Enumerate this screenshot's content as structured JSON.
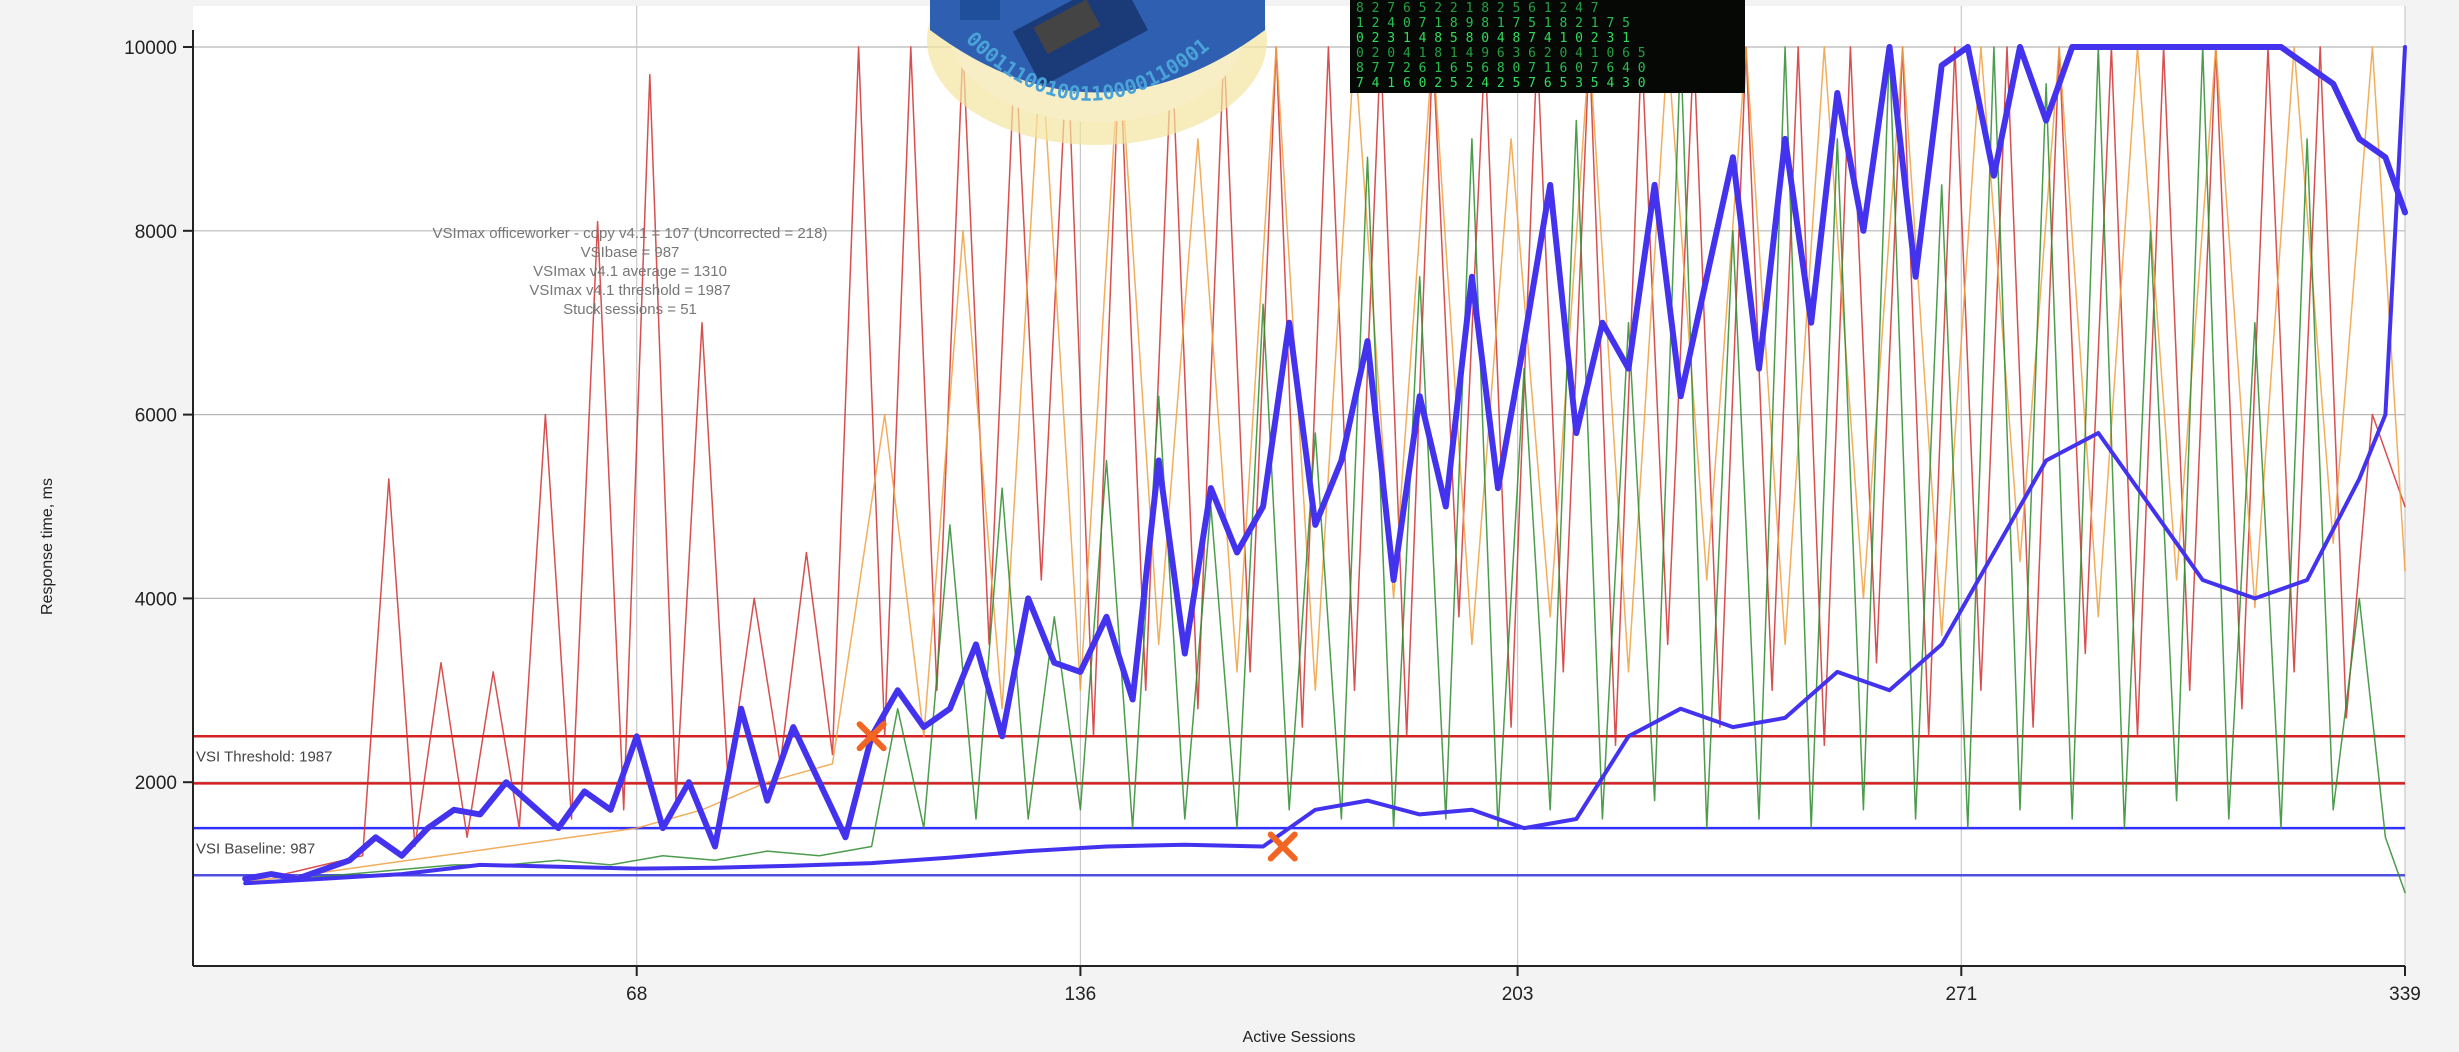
{
  "chart_data": {
    "type": "line",
    "title": "",
    "xlabel": "Active Sessions",
    "ylabel": "Response time, ms",
    "xlim": [
      0,
      339
    ],
    "ylim": [
      0,
      10000
    ],
    "x_ticks": [
      68,
      136,
      203,
      271,
      339
    ],
    "y_ticks": [
      2000,
      4000,
      6000,
      8000,
      10000
    ],
    "grid": true,
    "annotation_lines": [
      "VSImax officeworker - copy v4.1 = 107 (Uncorrected = 218)",
      "VSIbase = 987",
      "VSImax v4.1 average = 1310",
      "VSImax v4.1 threshold = 1987",
      "Stuck sessions = 51"
    ],
    "reference_lines": [
      {
        "name": "VSI Threshold: 1987",
        "y": 1987,
        "color": "#d42020",
        "labeled": true
      },
      {
        "name": "VSI Baseline: 987",
        "y": 987,
        "color": "#5050e0",
        "labeled": true
      },
      {
        "name": "",
        "y": 2500,
        "color": "#d42020",
        "labeled": false
      },
      {
        "name": "",
        "y": 1500,
        "color": "#3030ff",
        "labeled": false
      }
    ],
    "markers": [
      {
        "x": 104,
        "y": 2500,
        "symbol": "x",
        "color": "#f26522"
      },
      {
        "x": 167,
        "y": 1300,
        "symbol": "x",
        "color": "#f26522"
      }
    ],
    "series": [
      {
        "color": "#4433ee",
        "width": 6,
        "x": [
          8,
          12,
          16,
          20,
          24,
          28,
          32,
          36,
          40,
          44,
          48,
          52,
          56,
          60,
          64,
          68,
          72,
          76,
          80,
          84,
          88,
          92,
          96,
          100,
          104,
          108,
          112,
          116,
          120,
          124,
          128,
          132,
          136,
          140,
          144,
          148,
          152,
          156,
          160,
          164,
          168,
          172,
          176,
          180,
          184,
          188,
          192,
          196,
          200,
          204,
          208,
          212,
          216,
          220,
          224,
          228,
          232,
          236,
          240,
          244,
          248,
          252,
          256,
          260,
          264,
          268,
          272,
          276,
          280,
          284,
          288,
          292,
          296,
          300,
          304,
          308,
          312,
          316,
          320,
          324,
          328,
          332,
          336,
          339
        ],
        "y": [
          950,
          1000,
          950,
          1050,
          1150,
          1400,
          1200,
          1500,
          1700,
          1650,
          2000,
          1750,
          1500,
          1900,
          1700,
          2500,
          1500,
          2000,
          1300,
          2800,
          1800,
          2600,
          2000,
          1400,
          2500,
          3000,
          2600,
          2800,
          3500,
          2500,
          4000,
          3300,
          3200,
          3800,
          2900,
          5500,
          3400,
          5200,
          4500,
          5000,
          7000,
          4800,
          5500,
          6800,
          4200,
          6200,
          5000,
          7500,
          5200,
          6800,
          8500,
          5800,
          7000,
          6500,
          8500,
          6200,
          7500,
          8800,
          6500,
          9000,
          7000,
          9500,
          8000,
          10000,
          7500,
          9800,
          10000,
          8600,
          10000,
          9200,
          10000,
          10000,
          10000,
          10000,
          10000,
          10000,
          10000,
          10000,
          10000,
          9800,
          9600,
          9000,
          8800,
          8200
        ]
      },
      {
        "color": "#4433ee",
        "width": 4,
        "x": [
          8,
          20,
          32,
          44,
          56,
          68,
          80,
          92,
          104,
          116,
          128,
          140,
          152,
          164,
          172,
          180,
          188,
          196,
          204,
          212,
          220,
          228,
          236,
          244,
          252,
          260,
          268,
          276,
          284,
          292,
          300,
          308,
          316,
          324,
          332,
          336,
          339
        ],
        "y": [
          900,
          950,
          1000,
          1100,
          1080,
          1060,
          1070,
          1090,
          1120,
          1180,
          1250,
          1300,
          1320,
          1300,
          1700,
          1800,
          1650,
          1700,
          1500,
          1600,
          2500,
          2800,
          2600,
          2700,
          3200,
          3000,
          3500,
          4500,
          5500,
          5800,
          5000,
          4200,
          4000,
          4200,
          5300,
          6000,
          10000
        ]
      },
      {
        "color": "#d03030",
        "width": 1.5,
        "x": [
          8,
          14,
          20,
          26,
          30,
          34,
          38,
          42,
          46,
          50,
          54,
          58,
          62,
          66,
          70,
          74,
          78,
          82,
          86,
          90,
          94,
          98,
          102,
          106,
          110,
          114,
          118,
          122,
          126,
          130,
          134,
          138,
          142,
          146,
          150,
          154,
          158,
          162,
          166,
          170,
          174,
          178,
          182,
          186,
          190,
          194,
          198,
          202,
          206,
          210,
          214,
          218,
          222,
          226,
          230,
          234,
          238,
          242,
          246,
          250,
          254,
          258,
          262,
          266,
          270,
          274,
          278,
          282,
          286,
          290,
          294,
          298,
          302,
          306,
          310,
          314,
          318,
          322,
          326,
          330,
          334,
          339
        ],
        "y": [
          950,
          1000,
          1100,
          1200,
          5300,
          1300,
          3300,
          1400,
          3200,
          1500,
          6000,
          1600,
          8100,
          1700,
          9700,
          1800,
          7000,
          2000,
          4000,
          2200,
          4500,
          2300,
          10000,
          2500,
          10000,
          3000,
          10000,
          3500,
          10000,
          4200,
          10000,
          2500,
          10000,
          3000,
          10000,
          2800,
          10000,
          3200,
          10000,
          2600,
          10000,
          3000,
          10000,
          2500,
          10000,
          3800,
          10000,
          2600,
          10000,
          3200,
          10000,
          2400,
          10000,
          3500,
          10000,
          2600,
          10000,
          3000,
          10000,
          2400,
          10000,
          3300,
          10000,
          2500,
          10000,
          3000,
          10000,
          2600,
          10000,
          3400,
          10000,
          2500,
          10000,
          3000,
          10000,
          2800,
          10000,
          3200,
          10000,
          2700,
          6000,
          5000
        ]
      },
      {
        "color": "#2e8b2e",
        "width": 1.5,
        "x": [
          8,
          16,
          24,
          32,
          40,
          48,
          56,
          64,
          72,
          80,
          88,
          96,
          104,
          108,
          112,
          116,
          120,
          124,
          128,
          132,
          136,
          140,
          144,
          148,
          152,
          156,
          160,
          164,
          168,
          172,
          176,
          180,
          184,
          188,
          192,
          196,
          200,
          204,
          208,
          212,
          216,
          220,
          224,
          228,
          232,
          236,
          240,
          244,
          248,
          252,
          256,
          260,
          264,
          268,
          272,
          276,
          280,
          284,
          288,
          292,
          296,
          300,
          304,
          308,
          312,
          316,
          320,
          324,
          328,
          332,
          336,
          339
        ],
        "y": [
          900,
          950,
          1000,
          1050,
          1100,
          1100,
          1150,
          1100,
          1200,
          1150,
          1250,
          1200,
          1300,
          2800,
          1500,
          4800,
          1600,
          5200,
          1600,
          3800,
          1700,
          5500,
          1500,
          6200,
          1600,
          5000,
          1500,
          7200,
          1700,
          5800,
          1600,
          8800,
          1500,
          7500,
          1600,
          9000,
          1500,
          6500,
          1700,
          9200,
          1600,
          7000,
          1800,
          10000,
          1500,
          8000,
          1600,
          10000,
          1500,
          9000,
          1700,
          10000,
          1600,
          8500,
          1500,
          10000,
          1700,
          9600,
          1600,
          10000,
          1500,
          8000,
          1800,
          10000,
          1600,
          7000,
          1500,
          9000,
          1700,
          4000,
          1400,
          800
        ]
      },
      {
        "color": "#f0a040",
        "width": 1.5,
        "x": [
          8,
          18,
          28,
          38,
          48,
          58,
          68,
          78,
          88,
          98,
          106,
          112,
          118,
          124,
          130,
          136,
          142,
          148,
          154,
          160,
          166,
          172,
          178,
          184,
          190,
          196,
          202,
          208,
          214,
          220,
          226,
          232,
          238,
          244,
          250,
          256,
          262,
          268,
          274,
          280,
          286,
          292,
          298,
          304,
          310,
          316,
          322,
          328,
          334,
          339
        ],
        "y": [
          920,
          1000,
          1100,
          1200,
          1300,
          1400,
          1500,
          1700,
          2000,
          2200,
          6000,
          2500,
          8000,
          2800,
          10000,
          3000,
          10000,
          3500,
          9000,
          3200,
          10000,
          3000,
          10000,
          4000,
          10000,
          3500,
          9000,
          3800,
          10000,
          3200,
          10000,
          4200,
          10000,
          3500,
          10000,
          4000,
          10000,
          3600,
          10000,
          4400,
          10000,
          3800,
          10000,
          4200,
          10000,
          3900,
          10000,
          4600,
          10000,
          4300
        ]
      }
    ]
  },
  "decor": {
    "circuit_ring_text": "00011100100110000110001",
    "matrix_rows": [
      "8 2  7 6 5  2 2  1 8  2 5 6  1 2 4 7",
      "1 2  4 0 7 1 8  9 8 1 7 5 1 8  2 1 7 5",
      "0 2  3 1  4 8 5 8 0 4 8 7 4 1 0 2 3 1",
      "0 2  0 4 1 8 1 4 9 6 3 6 2 0 4 1 0 6 5",
      "8 7  7 2 6 1 6 5 6 8 0 7 1 6 0 7 6 4 0",
      "7 4  1 6 0 2 5 2 4 2 5 7 6 5 3 5 4 3 0"
    ]
  }
}
